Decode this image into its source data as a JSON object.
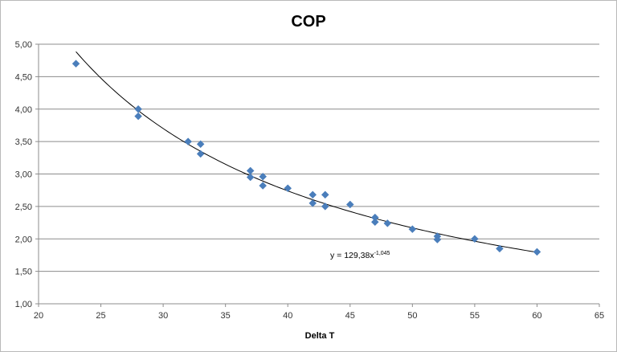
{
  "chart_data": {
    "type": "scatter",
    "title": "COP",
    "xlabel": "Delta T",
    "ylabel": "",
    "xlim": [
      20,
      65
    ],
    "ylim": [
      1.0,
      5.0
    ],
    "x_ticks": [
      "20",
      "25",
      "30",
      "35",
      "40",
      "45",
      "50",
      "55",
      "60",
      "65"
    ],
    "y_ticks": [
      "1,00",
      "1,50",
      "2,00",
      "2,50",
      "3,00",
      "3,50",
      "4,00",
      "4,50",
      "5,00"
    ],
    "grid": "horizontal",
    "marker": "diamond",
    "marker_color": "#4a7ebb",
    "series": [
      {
        "points": [
          [
            23,
            4.7
          ],
          [
            28,
            4.0
          ],
          [
            28,
            3.89
          ],
          [
            32,
            3.5
          ],
          [
            33,
            3.46
          ],
          [
            33,
            3.31
          ],
          [
            37,
            3.05
          ],
          [
            37,
            2.95
          ],
          [
            38,
            2.96
          ],
          [
            38,
            2.82
          ],
          [
            40,
            2.78
          ],
          [
            42,
            2.68
          ],
          [
            42,
            2.55
          ],
          [
            43,
            2.68
          ],
          [
            43,
            2.5
          ],
          [
            45,
            2.53
          ],
          [
            47,
            2.33
          ],
          [
            47,
            2.26
          ],
          [
            48,
            2.24
          ],
          [
            50,
            2.15
          ],
          [
            52,
            2.04
          ],
          [
            52,
            1.99
          ],
          [
            55,
            2.0
          ],
          [
            57,
            1.85
          ],
          [
            60,
            1.8
          ]
        ]
      }
    ],
    "trendline": {
      "type": "power",
      "a": 129.38,
      "b": -1.045,
      "x_range": [
        23,
        60
      ],
      "label_base": "y = 129,38x",
      "label_exponent": "-1,045",
      "color": "#000000"
    }
  }
}
